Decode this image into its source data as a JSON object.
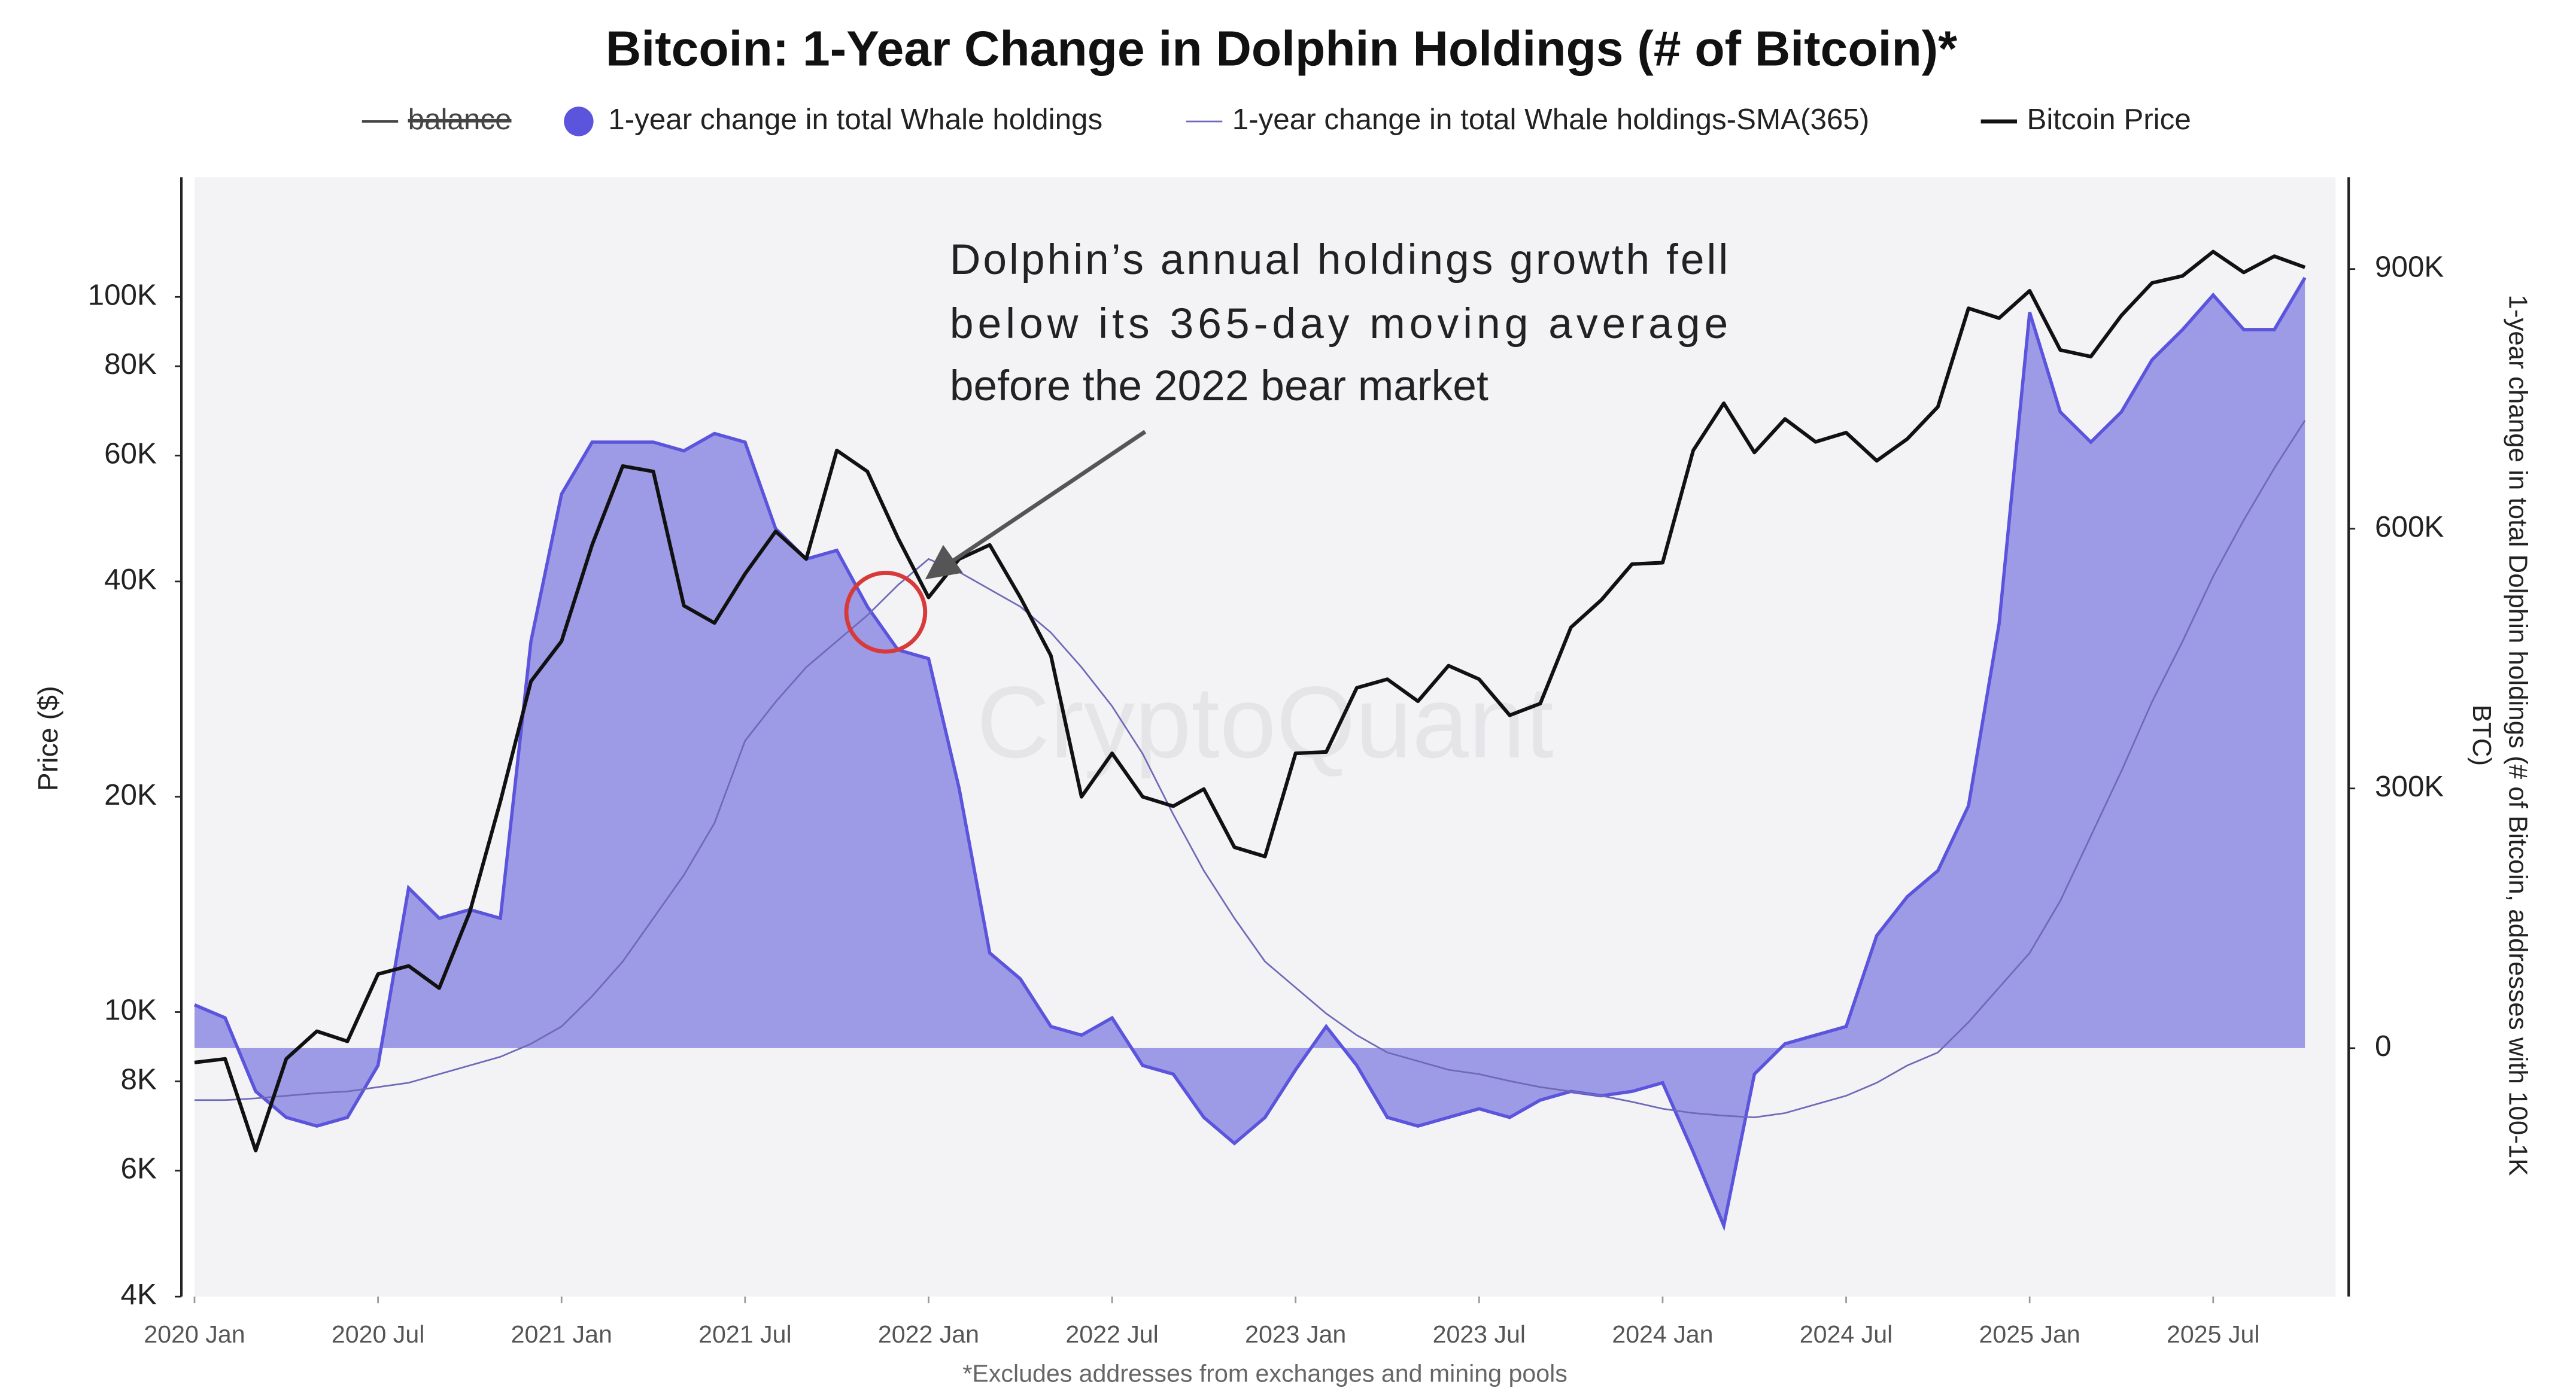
{
  "chart_data": {
    "type": "line",
    "title": "Bitcoin: 1-Year Change in Dolphin Holdings (# of Bitcoin)*",
    "footnote": "*Excludes addresses from exchanges and mining pools",
    "watermark": "CryptoQuant",
    "annotation": [
      "Dolphin’s annual holdings growth fell",
      "below its 365-day moving average",
      "before the 2022 bear market"
    ],
    "ylabel": "Price ($)",
    "y2label": [
      "1-year change in total Dolphin holdings (# of Bitcoin, addresses with 100-1K",
      "BTC)"
    ],
    "legend_disabled": [
      "balance"
    ],
    "yscale": "log",
    "grid": false,
    "x": [
      "2020-01",
      "2020-02",
      "2020-03",
      "2020-04",
      "2020-05",
      "2020-06",
      "2020-07",
      "2020-08",
      "2020-09",
      "2020-10",
      "2020-11",
      "2020-12",
      "2021-01",
      "2021-02",
      "2021-03",
      "2021-04",
      "2021-05",
      "2021-06",
      "2021-07",
      "2021-08",
      "2021-09",
      "2021-10",
      "2021-11",
      "2021-12",
      "2022-01",
      "2022-02",
      "2022-03",
      "2022-04",
      "2022-05",
      "2022-06",
      "2022-07",
      "2022-08",
      "2022-09",
      "2022-10",
      "2022-11",
      "2022-12",
      "2023-01",
      "2023-02",
      "2023-03",
      "2023-04",
      "2023-05",
      "2023-06",
      "2023-07",
      "2023-08",
      "2023-09",
      "2023-10",
      "2023-11",
      "2023-12",
      "2024-01",
      "2024-02",
      "2024-03",
      "2024-04",
      "2024-05",
      "2024-06",
      "2024-07",
      "2024-08",
      "2024-09",
      "2024-10",
      "2024-11",
      "2024-12",
      "2025-01",
      "2025-02",
      "2025-03",
      "2025-04",
      "2025-05",
      "2025-06",
      "2025-07",
      "2025-08",
      "2025-09",
      "2025-10"
    ],
    "xlim": [
      "2020-01",
      "2025-11"
    ],
    "xticks": [
      {
        "value": "2020-01",
        "label": "2020 Jan"
      },
      {
        "value": "2020-07",
        "label": "2020 Jul"
      },
      {
        "value": "2021-01",
        "label": "2021 Jan"
      },
      {
        "value": "2021-07",
        "label": "2021 Jul"
      },
      {
        "value": "2022-01",
        "label": "2022 Jan"
      },
      {
        "value": "2022-07",
        "label": "2022 Jul"
      },
      {
        "value": "2023-01",
        "label": "2023 Jan"
      },
      {
        "value": "2023-07",
        "label": "2023 Jul"
      },
      {
        "value": "2024-01",
        "label": "2024 Jan"
      },
      {
        "value": "2024-07",
        "label": "2024 Jul"
      },
      {
        "value": "2025-01",
        "label": "2025 Jan"
      },
      {
        "value": "2025-07",
        "label": "2025 Jul"
      }
    ],
    "ylim": [
      4000,
      147000
    ],
    "yticks": [
      {
        "value": 4000,
        "label": "4K"
      },
      {
        "value": 6000,
        "label": "6K"
      },
      {
        "value": 8000,
        "label": "8K"
      },
      {
        "value": 10000,
        "label": "10K"
      },
      {
        "value": 20000,
        "label": "20K"
      },
      {
        "value": 40000,
        "label": "40K"
      },
      {
        "value": 60000,
        "label": "60K"
      },
      {
        "value": 80000,
        "label": "80K"
      },
      {
        "value": 100000,
        "label": "100K"
      }
    ],
    "y2lim": [
      -287000,
      1006000
    ],
    "y2ticks": [
      0,
      {
        "value": 300000,
        "label": "300K"
      },
      {
        "value": 600000,
        "label": "600K"
      },
      {
        "value": 900000,
        "label": "900K"
      }
    ],
    "series": [
      {
        "name": "1-year change in total Whale holdings",
        "color": "#5b54dc",
        "fill": "#9d9ae6",
        "style": "area",
        "axis": "y2",
        "values": [
          50000,
          35000,
          -50000,
          -80000,
          -90000,
          -80000,
          -20000,
          185000,
          150000,
          160000,
          150000,
          470000,
          640000,
          700000,
          700000,
          700000,
          690000,
          710000,
          700000,
          600000,
          565000,
          575000,
          510000,
          460000,
          450000,
          300000,
          110000,
          80000,
          25000,
          15000,
          35000,
          -20000,
          -30000,
          -80000,
          -110000,
          -80000,
          -25000,
          25000,
          -20000,
          -80000,
          -90000,
          -80000,
          -70000,
          -80000,
          -60000,
          -50000,
          -55000,
          -50000,
          -40000,
          -120000,
          -205000,
          -30000,
          5000,
          15000,
          25000,
          130000,
          175000,
          205000,
          280000,
          490000,
          850000,
          735000,
          700000,
          735000,
          795000,
          830000,
          870000,
          830000,
          830000,
          890000
        ]
      },
      {
        "name": "1-year change in total Whale holdings-SMA(365)",
        "color": "#6f6ab8",
        "style": "thin",
        "axis": "y2",
        "values": [
          -60000,
          -60000,
          -58000,
          -55000,
          -52000,
          -50000,
          -45000,
          -40000,
          -30000,
          -20000,
          -10000,
          5000,
          25000,
          60000,
          100000,
          150000,
          200000,
          260000,
          355000,
          400000,
          440000,
          470000,
          500000,
          535000,
          565000,
          550000,
          530000,
          510000,
          480000,
          440000,
          395000,
          340000,
          270000,
          205000,
          150000,
          100000,
          70000,
          40000,
          15000,
          -5000,
          -15000,
          -25000,
          -30000,
          -38000,
          -45000,
          -50000,
          -55000,
          -62000,
          -70000,
          -75000,
          -78000,
          -80000,
          -75000,
          -65000,
          -55000,
          -40000,
          -20000,
          -5000,
          30000,
          70000,
          110000,
          170000,
          245000,
          320000,
          400000,
          470000,
          545000,
          610000,
          670000,
          725000
        ]
      },
      {
        "name": "Bitcoin Price",
        "color": "#111111",
        "style": "line",
        "axis": "y",
        "values": [
          8500,
          8600,
          6400,
          8600,
          9400,
          9100,
          11300,
          11600,
          10800,
          13800,
          19700,
          29000,
          33000,
          45000,
          58000,
          57000,
          37000,
          35000,
          41000,
          47000,
          43000,
          61000,
          57000,
          46000,
          38000,
          43000,
          45000,
          38000,
          31500,
          20000,
          23000,
          20000,
          19400,
          20500,
          17000,
          16500,
          23000,
          23100,
          28400,
          29200,
          27200,
          30500,
          29200,
          26000,
          27000,
          34500,
          37700,
          42300,
          42500,
          61000,
          71000,
          60600,
          67500,
          62700,
          64600,
          59000,
          63300,
          70200,
          96400,
          93400,
          102000,
          84300,
          82500,
          94200,
          104600,
          107000,
          115700,
          108200,
          114000,
          110000
        ]
      }
    ]
  }
}
